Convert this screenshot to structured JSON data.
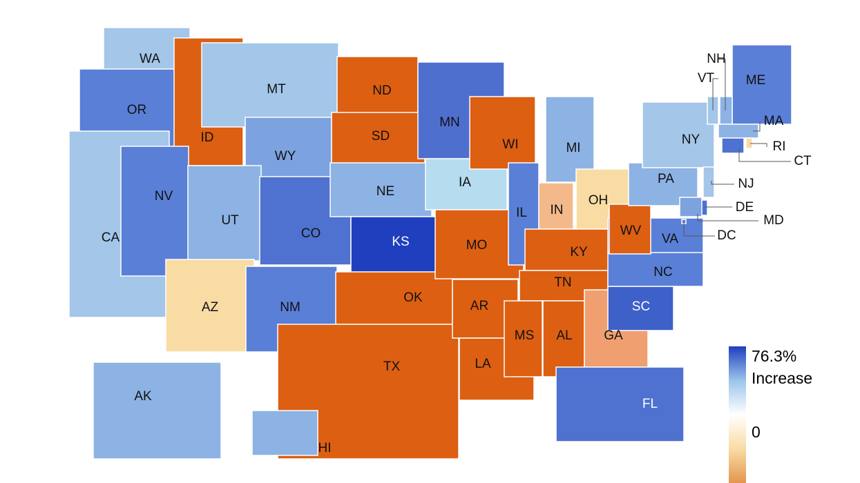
{
  "map": {
    "states": [
      {
        "label": "WA",
        "color": "#a3c6e9",
        "text_color": "#111"
      },
      {
        "label": "OR",
        "color": "#5a7fd6",
        "text_color": "#111"
      },
      {
        "label": "CA",
        "color": "#a3c6e9",
        "text_color": "#111"
      },
      {
        "label": "ID",
        "color": "#dd5f12",
        "text_color": "#111"
      },
      {
        "label": "NV",
        "color": "#5a7fd6",
        "text_color": "#111"
      },
      {
        "label": "MT",
        "color": "#a3c6e9",
        "text_color": "#111"
      },
      {
        "label": "WY",
        "color": "#7ca3e0",
        "text_color": "#111"
      },
      {
        "label": "UT",
        "color": "#8db2e4",
        "text_color": "#111"
      },
      {
        "label": "AZ",
        "color": "#f8dca4",
        "text_color": "#111"
      },
      {
        "label": "CO",
        "color": "#4f72d0",
        "text_color": "#111"
      },
      {
        "label": "NM",
        "color": "#5a7fd6",
        "text_color": "#111"
      },
      {
        "label": "ND",
        "color": "#dd5f12",
        "text_color": "#111"
      },
      {
        "label": "SD",
        "color": "#dd5f12",
        "text_color": "#111"
      },
      {
        "label": "NE",
        "color": "#8db2e4",
        "text_color": "#111"
      },
      {
        "label": "KS",
        "color": "#1f3fbf",
        "text_color": "#fff"
      },
      {
        "label": "OK",
        "color": "#dd5f12",
        "text_color": "#111"
      },
      {
        "label": "TX",
        "color": "#dd5f12",
        "text_color": "#111"
      },
      {
        "label": "MN",
        "color": "#4f6fcf",
        "text_color": "#111"
      },
      {
        "label": "IA",
        "color": "#b5dcef",
        "text_color": "#111"
      },
      {
        "label": "MO",
        "color": "#dd5f12",
        "text_color": "#111"
      },
      {
        "label": "AR",
        "color": "#dd5f12",
        "text_color": "#111"
      },
      {
        "label": "LA",
        "color": "#dd5f12",
        "text_color": "#111"
      },
      {
        "label": "WI",
        "color": "#dd5f12",
        "text_color": "#111"
      },
      {
        "label": "IL",
        "color": "#5a7fd6",
        "text_color": "#111"
      },
      {
        "label": "MI",
        "color": "#8db2e4",
        "text_color": "#111"
      },
      {
        "label": "IN",
        "color": "#f3b98a",
        "text_color": "#111"
      },
      {
        "label": "OH",
        "color": "#f8dca4",
        "text_color": "#111"
      },
      {
        "label": "KY",
        "color": "#dd5f12",
        "text_color": "#111"
      },
      {
        "label": "TN",
        "color": "#dd5f12",
        "text_color": "#111"
      },
      {
        "label": "MS",
        "color": "#dd5f12",
        "text_color": "#111"
      },
      {
        "label": "AL",
        "color": "#dd5f12",
        "text_color": "#111"
      },
      {
        "label": "GA",
        "color": "#f0a070",
        "text_color": "#111"
      },
      {
        "label": "FL",
        "color": "#4f72d0",
        "text_color": "#fff"
      },
      {
        "label": "SC",
        "color": "#3e60c9",
        "text_color": "#fff"
      },
      {
        "label": "NC",
        "color": "#5a7fd6",
        "text_color": "#111"
      },
      {
        "label": "VA",
        "color": "#5a7fd6",
        "text_color": "#111"
      },
      {
        "label": "WV",
        "color": "#dd5f12",
        "text_color": "#111"
      },
      {
        "label": "PA",
        "color": "#8db2e4",
        "text_color": "#111"
      },
      {
        "label": "NY",
        "color": "#a3c6e9",
        "text_color": "#111"
      },
      {
        "label": "ME",
        "color": "#5a7fd6",
        "text_color": "#111"
      },
      {
        "label": "VT",
        "color": "#a3c6e9",
        "text_color": "#111"
      },
      {
        "label": "NH",
        "color": "#8db2e4",
        "text_color": "#111"
      },
      {
        "label": "MA",
        "color": "#8db2e4",
        "text_color": "#111"
      },
      {
        "label": "RI",
        "color": "#f8dca4",
        "text_color": "#111"
      },
      {
        "label": "CT",
        "color": "#4f72d0",
        "text_color": "#111"
      },
      {
        "label": "NJ",
        "color": "#a3c6e9",
        "text_color": "#111"
      },
      {
        "label": "DE",
        "color": "#4f72d0",
        "text_color": "#111"
      },
      {
        "label": "MD",
        "color": "#7ca3e0",
        "text_color": "#111"
      },
      {
        "label": "DC",
        "color": "#5a7fd6",
        "text_color": "#111"
      },
      {
        "label": "AK",
        "color": "#8db2e4",
        "text_color": "#111"
      },
      {
        "label": "HI",
        "color": "#8db2e4",
        "text_color": "#111"
      }
    ],
    "legend": {
      "max_label": "76.3%",
      "max_caption": "Increase",
      "zero_label": "0",
      "colors": [
        "#1f3fbf",
        "#9cc4ea",
        "#ffffff",
        "#f8dca4",
        "#e3954f"
      ]
    }
  }
}
